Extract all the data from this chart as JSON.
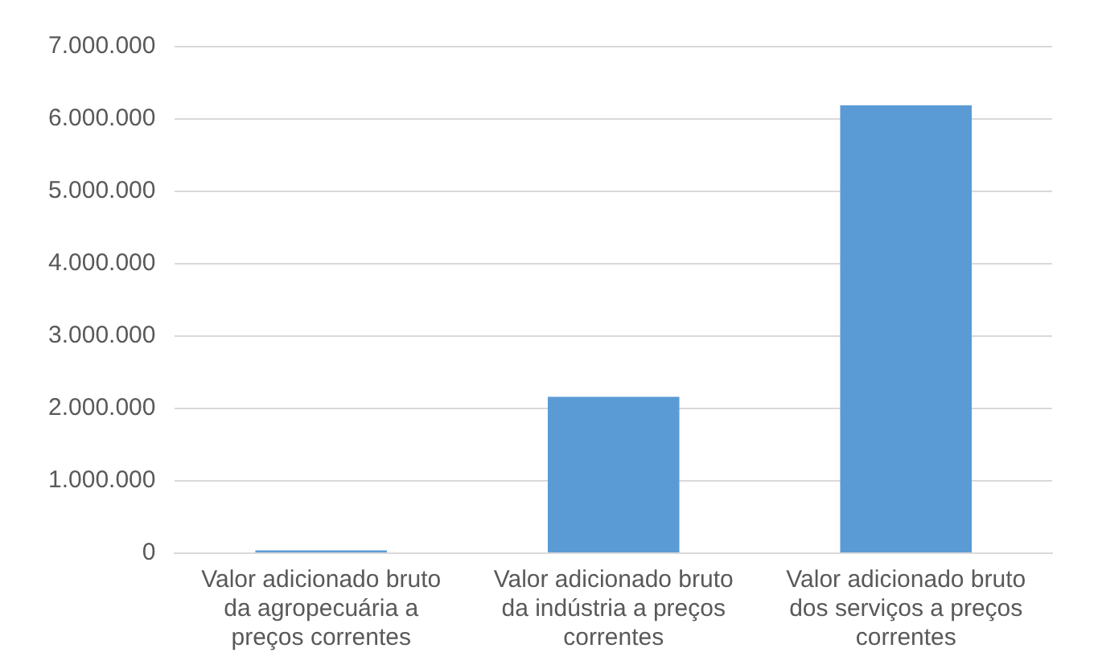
{
  "chart_data": {
    "type": "bar",
    "categories": [
      "Valor adicionado bruto da agropecuária a preços correntes",
      "Valor adicionado bruto da indústria a preços correntes",
      "Valor adicionado bruto dos serviços a preços correntes"
    ],
    "values": [
      40000,
      2160000,
      6190000
    ],
    "color": "#5b9bd5",
    "ylim": [
      0,
      7000000
    ],
    "yticks": [
      {
        "value": 0,
        "label": "0"
      },
      {
        "value": 1000000,
        "label": "1.000.000"
      },
      {
        "value": 2000000,
        "label": "2.000.000"
      },
      {
        "value": 3000000,
        "label": "3.000.000"
      },
      {
        "value": 4000000,
        "label": "4.000.000"
      },
      {
        "value": 5000000,
        "label": "5.000.000"
      },
      {
        "value": 6000000,
        "label": "6.000.000"
      },
      {
        "value": 7000000,
        "label": "7.000.000"
      }
    ],
    "grid": "y"
  }
}
